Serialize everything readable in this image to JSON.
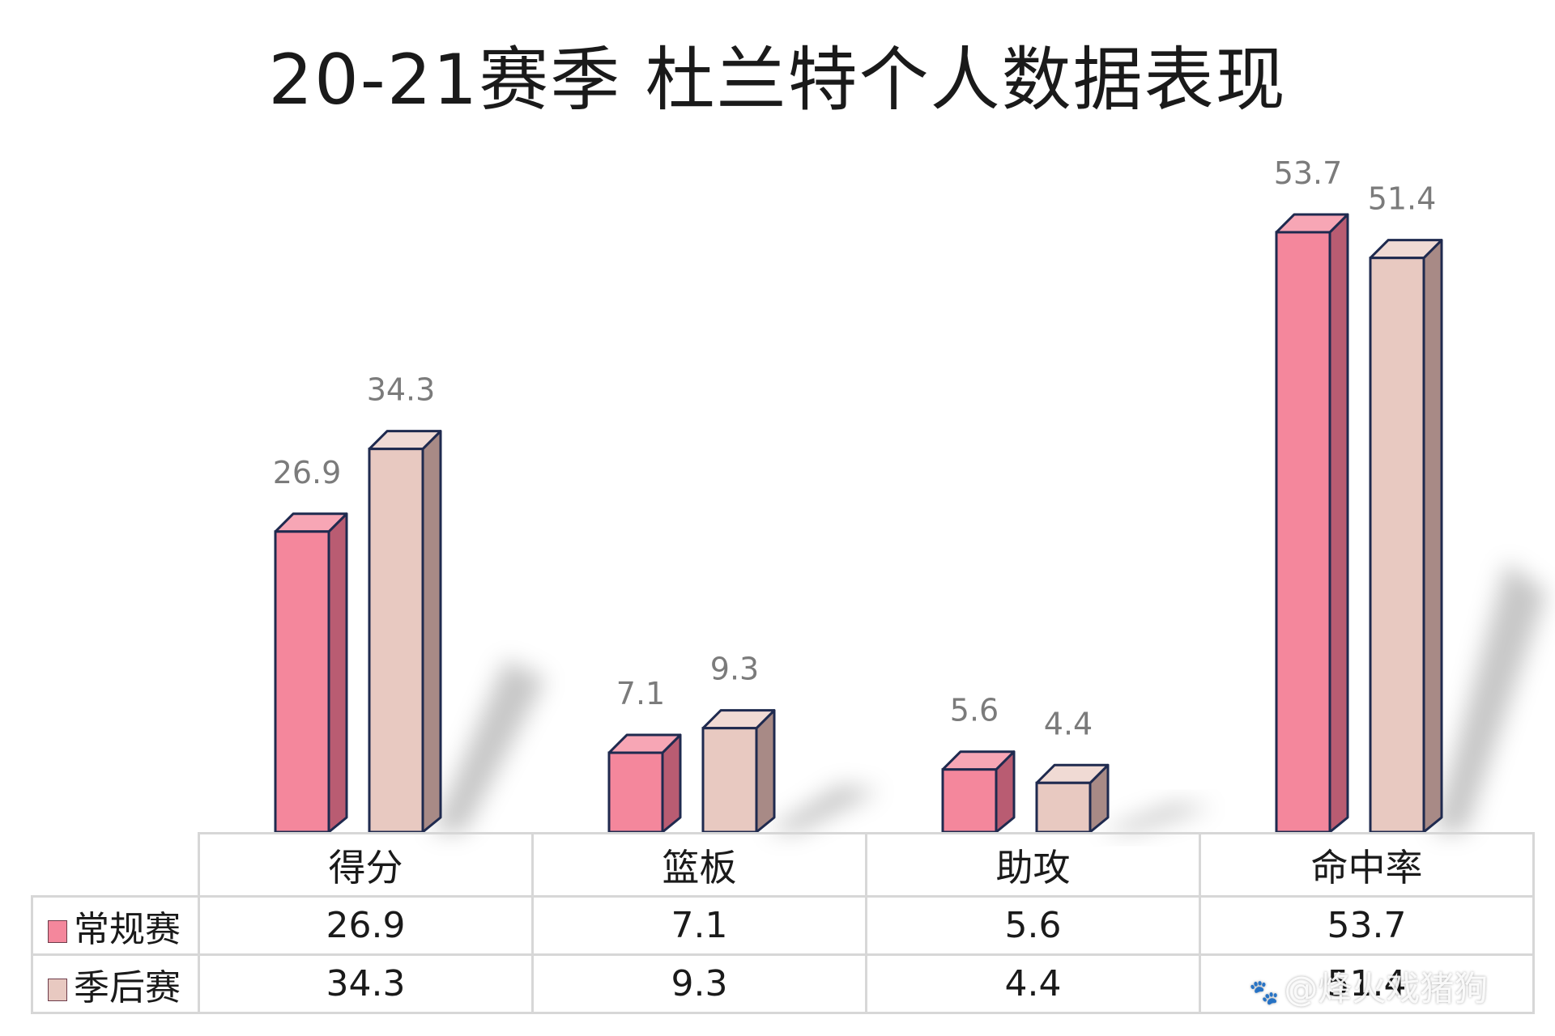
{
  "chart_data": {
    "type": "bar",
    "title": "20-21赛季 杜兰特个人数据表现",
    "categories": [
      "得分",
      "篮板",
      "助攻",
      "命中率"
    ],
    "series": [
      {
        "name": "常规赛",
        "values": [
          26.9,
          7.1,
          5.6,
          53.7
        ]
      },
      {
        "name": "季后赛",
        "values": [
          34.3,
          9.3,
          4.4,
          51.4
        ]
      }
    ],
    "ylim": [
      0,
      60
    ],
    "grid": false,
    "legend": "table-left",
    "colors": {
      "regular_front": "#f4879c",
      "regular_side": "#b95c72",
      "regular_top": "#f7a6b5",
      "playoff_front": "#e8c9c1",
      "playoff_side": "#a88a86",
      "playoff_top": "#f0dad4",
      "outline": "#1f2a4f"
    }
  },
  "watermark": {
    "text": "@烽火戏猪狗",
    "icon": "paw-icon"
  }
}
